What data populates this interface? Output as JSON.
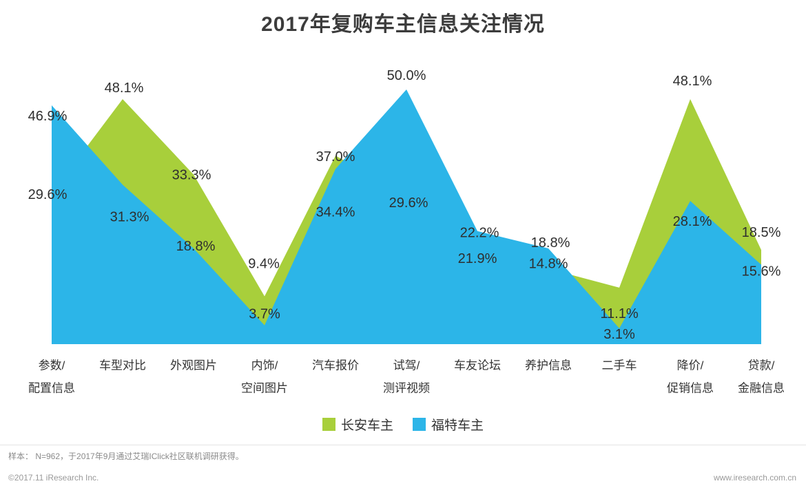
{
  "title": "2017年复购车主信息关注情况",
  "chart_data": {
    "type": "area",
    "title": "2017年复购车主信息关注情况",
    "categories": [
      "参数/配置信息",
      "车型对比",
      "外观图片",
      "内饰/空间图片",
      "汽车报价",
      "试驾/测评视频",
      "车友论坛",
      "养护信息",
      "二手车",
      "降价/促销信息",
      "贷款/金融信息"
    ],
    "series": [
      {
        "name": "长安车主",
        "color": "#a8cf3b",
        "values": [
          29.6,
          48.1,
          33.3,
          9.4,
          37.0,
          29.6,
          21.9,
          14.8,
          11.1,
          48.1,
          18.5
        ]
      },
      {
        "name": "福特车主",
        "color": "#2cb5e8",
        "values": [
          46.9,
          31.3,
          18.8,
          3.7,
          34.4,
          50.0,
          22.2,
          18.8,
          3.1,
          28.1,
          15.6
        ]
      }
    ],
    "value_unit": "%",
    "ylim": [
      0,
      50
    ],
    "grid": false,
    "legend_position": "bottom"
  },
  "legend": {
    "items": [
      {
        "label": "长安车主",
        "color": "#a8cf3b"
      },
      {
        "label": "福特车主",
        "color": "#2cb5e8"
      }
    ]
  },
  "footer": {
    "sample_note": "样本： N=962，于2017年9月通过艾瑞IClick社区联机调研获得。",
    "copyright": "©2017.11 iResearch Inc.",
    "website": "www.iresearch.com.cn"
  }
}
